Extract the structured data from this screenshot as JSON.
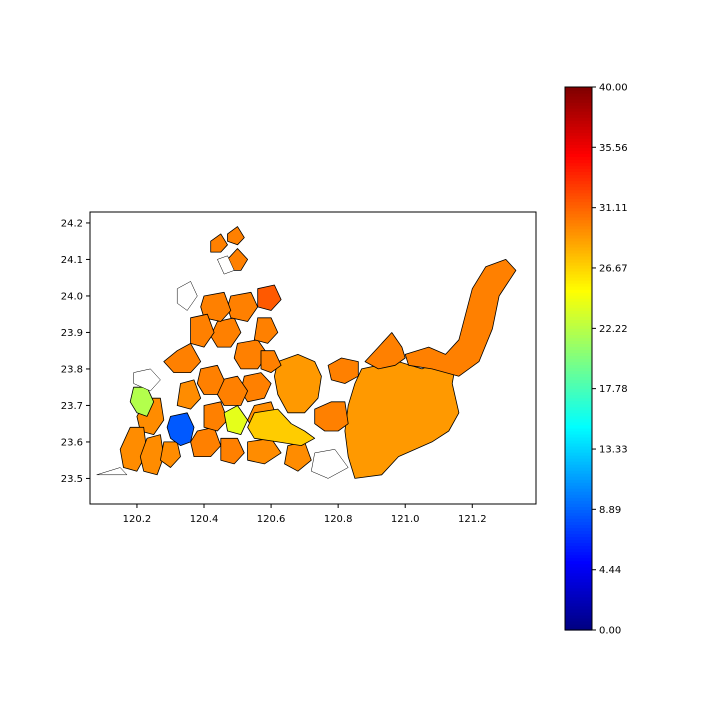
{
  "chart_data": {
    "type": "choropleth-map",
    "title": "",
    "xlabel": "",
    "ylabel": "",
    "xlim": [
      120.06,
      121.39
    ],
    "ylim": [
      23.43,
      24.23
    ],
    "x_ticks": [
      120.2,
      120.4,
      120.6,
      120.8,
      121.0,
      121.2
    ],
    "x_tick_labels": [
      "120.2",
      "120.4",
      "120.6",
      "120.8",
      "121.0",
      "121.2"
    ],
    "y_ticks": [
      23.5,
      23.6,
      23.7,
      23.8,
      23.9,
      24.0,
      24.1,
      24.2
    ],
    "y_tick_labels": [
      "23.5",
      "23.6",
      "23.7",
      "23.8",
      "23.9",
      "24.0",
      "24.1",
      "24.2"
    ],
    "grid": false,
    "colorbar": {
      "colormap": "jet",
      "vmin": 0.0,
      "vmax": 40.0,
      "ticks": [
        0.0,
        4.44,
        8.89,
        13.33,
        17.78,
        22.22,
        26.67,
        31.11,
        35.56,
        40.0
      ],
      "tick_labels": [
        "0.00",
        "4.44",
        "8.89",
        "13.33",
        "17.78",
        "22.22",
        "26.67",
        "31.11",
        "35.56",
        "40.00"
      ],
      "placement": "right"
    },
    "regions": [
      {
        "value": 29.0,
        "ring": [
          [
            120.98,
            23.82
          ],
          [
            121.05,
            23.8
          ],
          [
            121.12,
            23.83
          ],
          [
            121.16,
            23.86
          ],
          [
            121.14,
            23.76
          ],
          [
            121.16,
            23.68
          ],
          [
            121.13,
            23.63
          ],
          [
            121.08,
            23.6
          ],
          [
            121.03,
            23.58
          ],
          [
            120.98,
            23.56
          ],
          [
            120.93,
            23.51
          ],
          [
            120.85,
            23.5
          ],
          [
            120.83,
            23.56
          ],
          [
            120.82,
            23.63
          ],
          [
            120.83,
            23.7
          ],
          [
            120.85,
            23.76
          ],
          [
            120.87,
            23.8
          ],
          [
            120.92,
            23.81
          ]
        ]
      },
      {
        "value": 30.0,
        "ring": [
          [
            121.0,
            23.84
          ],
          [
            121.07,
            23.86
          ],
          [
            121.12,
            23.84
          ],
          [
            121.16,
            23.88
          ],
          [
            121.18,
            23.95
          ],
          [
            121.2,
            24.02
          ],
          [
            121.24,
            24.08
          ],
          [
            121.3,
            24.1
          ],
          [
            121.33,
            24.07
          ],
          [
            121.28,
            24.0
          ],
          [
            121.26,
            23.91
          ],
          [
            121.22,
            23.82
          ],
          [
            121.16,
            23.78
          ],
          [
            121.08,
            23.8
          ],
          [
            121.01,
            23.81
          ]
        ]
      },
      {
        "value": 30.0,
        "ring": [
          [
            120.88,
            23.82
          ],
          [
            120.92,
            23.86
          ],
          [
            120.96,
            23.9
          ],
          [
            120.99,
            23.86
          ],
          [
            121.0,
            23.83
          ],
          [
            120.97,
            23.81
          ],
          [
            120.92,
            23.8
          ]
        ]
      },
      {
        "value": 30.0,
        "ring": [
          [
            120.73,
            23.69
          ],
          [
            120.78,
            23.71
          ],
          [
            120.82,
            23.71
          ],
          [
            120.83,
            23.65
          ],
          [
            120.8,
            23.63
          ],
          [
            120.76,
            23.63
          ],
          [
            120.73,
            23.65
          ]
        ]
      },
      {
        "value": 30.0,
        "ring": [
          [
            120.77,
            23.81
          ],
          [
            120.81,
            23.83
          ],
          [
            120.86,
            23.82
          ],
          [
            120.86,
            23.78
          ],
          [
            120.82,
            23.76
          ],
          [
            120.78,
            23.77
          ]
        ]
      },
      {
        "value": 29.0,
        "ring": [
          [
            120.62,
            23.82
          ],
          [
            120.68,
            23.84
          ],
          [
            120.73,
            23.82
          ],
          [
            120.75,
            23.78
          ],
          [
            120.74,
            23.72
          ],
          [
            120.7,
            23.68
          ],
          [
            120.65,
            23.68
          ],
          [
            120.62,
            23.73
          ],
          [
            120.61,
            23.78
          ]
        ]
      },
      {
        "value": 29.5,
        "ring": [
          [
            120.55,
            23.7
          ],
          [
            120.6,
            23.71
          ],
          [
            120.62,
            23.66
          ],
          [
            120.6,
            23.63
          ],
          [
            120.55,
            23.63
          ],
          [
            120.53,
            23.66
          ]
        ]
      },
      {
        "value": 30.0,
        "ring": [
          [
            120.52,
            23.78
          ],
          [
            120.57,
            23.79
          ],
          [
            120.6,
            23.76
          ],
          [
            120.58,
            23.72
          ],
          [
            120.53,
            23.71
          ],
          [
            120.51,
            23.74
          ]
        ]
      },
      {
        "value": 30.0,
        "ring": [
          [
            120.45,
            23.77
          ],
          [
            120.5,
            23.78
          ],
          [
            120.53,
            23.74
          ],
          [
            120.51,
            23.7
          ],
          [
            120.46,
            23.7
          ],
          [
            120.44,
            23.73
          ]
        ]
      },
      {
        "value": 30.0,
        "ring": [
          [
            120.39,
            23.8
          ],
          [
            120.44,
            23.81
          ],
          [
            120.46,
            23.77
          ],
          [
            120.44,
            23.73
          ],
          [
            120.4,
            23.73
          ],
          [
            120.38,
            23.76
          ]
        ]
      },
      {
        "value": 30.0,
        "ring": [
          [
            120.5,
            23.87
          ],
          [
            120.56,
            23.88
          ],
          [
            120.59,
            23.84
          ],
          [
            120.56,
            23.8
          ],
          [
            120.51,
            23.8
          ],
          [
            120.49,
            23.83
          ]
        ]
      },
      {
        "value": 30.0,
        "ring": [
          [
            120.44,
            23.93
          ],
          [
            120.49,
            23.94
          ],
          [
            120.51,
            23.9
          ],
          [
            120.48,
            23.86
          ],
          [
            120.44,
            23.86
          ],
          [
            120.42,
            23.89
          ]
        ]
      },
      {
        "value": 30.0,
        "ring": [
          [
            120.48,
            24.0
          ],
          [
            120.54,
            24.01
          ],
          [
            120.56,
            23.97
          ],
          [
            120.53,
            23.93
          ],
          [
            120.48,
            23.94
          ],
          [
            120.47,
            23.97
          ]
        ]
      },
      {
        "value": 31.5,
        "ring": [
          [
            120.56,
            24.02
          ],
          [
            120.61,
            24.03
          ],
          [
            120.63,
            23.99
          ],
          [
            120.6,
            23.96
          ],
          [
            120.56,
            23.97
          ]
        ]
      },
      {
        "value": 30.0,
        "ring": [
          [
            120.56,
            23.94
          ],
          [
            120.6,
            23.94
          ],
          [
            120.62,
            23.9
          ],
          [
            120.59,
            23.87
          ],
          [
            120.55,
            23.88
          ]
        ]
      },
      {
        "value": 30.0,
        "ring": [
          [
            120.57,
            23.85
          ],
          [
            120.61,
            23.85
          ],
          [
            120.63,
            23.81
          ],
          [
            120.6,
            23.79
          ],
          [
            120.57,
            23.8
          ]
        ]
      },
      {
        "value": 30.0,
        "ring": [
          [
            120.4,
            24.0
          ],
          [
            120.46,
            24.01
          ],
          [
            120.48,
            23.96
          ],
          [
            120.45,
            23.93
          ],
          [
            120.4,
            23.94
          ],
          [
            120.39,
            23.97
          ]
        ]
      },
      {
        "value": 30.0,
        "ring": [
          [
            120.36,
            23.94
          ],
          [
            120.41,
            23.95
          ],
          [
            120.43,
            23.9
          ],
          [
            120.4,
            23.86
          ],
          [
            120.36,
            23.87
          ]
        ]
      },
      {
        "value": 30.0,
        "ring": [
          [
            120.47,
            24.1
          ],
          [
            120.5,
            24.13
          ],
          [
            120.53,
            24.1
          ],
          [
            120.51,
            24.07
          ],
          [
            120.48,
            24.07
          ]
        ]
      },
      {
        "value": 30.0,
        "ring": [
          [
            120.42,
            24.15
          ],
          [
            120.45,
            24.17
          ],
          [
            120.47,
            24.14
          ],
          [
            120.45,
            24.12
          ],
          [
            120.42,
            24.12
          ]
        ]
      },
      {
        "value": 30.0,
        "ring": [
          [
            120.47,
            24.17
          ],
          [
            120.5,
            24.19
          ],
          [
            120.52,
            24.16
          ],
          [
            120.5,
            24.14
          ],
          [
            120.47,
            24.15
          ]
        ]
      },
      {
        "value": 30.0,
        "ring": [
          [
            120.36,
            23.87
          ],
          [
            120.39,
            23.82
          ],
          [
            120.36,
            23.79
          ],
          [
            120.31,
            23.79
          ],
          [
            120.28,
            23.82
          ],
          [
            120.32,
            23.85
          ]
        ]
      },
      {
        "value": 29.5,
        "ring": [
          [
            120.33,
            23.76
          ],
          [
            120.37,
            23.77
          ],
          [
            120.39,
            23.72
          ],
          [
            120.36,
            23.69
          ],
          [
            120.32,
            23.7
          ]
        ]
      },
      {
        "value": 29.5,
        "ring": [
          [
            120.23,
            23.72
          ],
          [
            120.27,
            23.72
          ],
          [
            120.28,
            23.66
          ],
          [
            120.25,
            23.62
          ],
          [
            120.21,
            23.63
          ],
          [
            120.2,
            23.67
          ]
        ]
      },
      {
        "value": 29.5,
        "ring": [
          [
            120.18,
            23.64
          ],
          [
            120.22,
            23.64
          ],
          [
            120.23,
            23.57
          ],
          [
            120.2,
            23.52
          ],
          [
            120.16,
            23.53
          ],
          [
            120.15,
            23.58
          ]
        ]
      },
      {
        "value": 29.5,
        "ring": [
          [
            120.23,
            23.61
          ],
          [
            120.27,
            23.62
          ],
          [
            120.28,
            23.56
          ],
          [
            120.26,
            23.51
          ],
          [
            120.22,
            23.52
          ],
          [
            120.21,
            23.56
          ]
        ]
      },
      {
        "value": 29.5,
        "ring": [
          [
            120.28,
            23.6
          ],
          [
            120.32,
            23.6
          ],
          [
            120.33,
            23.56
          ],
          [
            120.3,
            23.53
          ],
          [
            120.27,
            23.55
          ]
        ]
      },
      {
        "value": 30.0,
        "ring": [
          [
            120.38,
            23.63
          ],
          [
            120.43,
            23.64
          ],
          [
            120.45,
            23.59
          ],
          [
            120.42,
            23.56
          ],
          [
            120.37,
            23.56
          ],
          [
            120.36,
            23.6
          ]
        ]
      },
      {
        "value": 30.0,
        "ring": [
          [
            120.45,
            23.61
          ],
          [
            120.5,
            23.61
          ],
          [
            120.52,
            23.57
          ],
          [
            120.49,
            23.54
          ],
          [
            120.45,
            23.55
          ]
        ]
      },
      {
        "value": 29.5,
        "ring": [
          [
            120.53,
            23.6
          ],
          [
            120.6,
            23.61
          ],
          [
            120.63,
            23.57
          ],
          [
            120.58,
            23.54
          ],
          [
            120.53,
            23.55
          ]
        ]
      },
      {
        "value": 29.5,
        "ring": [
          [
            120.65,
            23.59
          ],
          [
            120.7,
            23.6
          ],
          [
            120.72,
            23.55
          ],
          [
            120.68,
            23.52
          ],
          [
            120.64,
            23.54
          ]
        ]
      },
      {
        "value": 30.0,
        "ring": [
          [
            120.4,
            23.7
          ],
          [
            120.45,
            23.71
          ],
          [
            120.47,
            23.66
          ],
          [
            120.44,
            23.63
          ],
          [
            120.4,
            23.64
          ]
        ]
      },
      {
        "value": 27.0,
        "ring": [
          [
            120.55,
            23.68
          ],
          [
            120.62,
            23.69
          ],
          [
            120.66,
            23.65
          ],
          [
            120.7,
            23.63
          ],
          [
            120.73,
            23.61
          ],
          [
            120.69,
            23.59
          ],
          [
            120.62,
            23.6
          ],
          [
            120.55,
            23.61
          ],
          [
            120.53,
            23.64
          ]
        ]
      },
      {
        "value": 24.0,
        "ring": [
          [
            120.46,
            23.68
          ],
          [
            120.5,
            23.7
          ],
          [
            120.53,
            23.66
          ],
          [
            120.51,
            23.62
          ],
          [
            120.47,
            23.63
          ]
        ]
      },
      {
        "value": 22.0,
        "ring": [
          [
            120.19,
            23.75
          ],
          [
            120.23,
            23.75
          ],
          [
            120.25,
            23.71
          ],
          [
            120.23,
            23.67
          ],
          [
            120.2,
            23.68
          ],
          [
            120.18,
            23.71
          ]
        ]
      },
      {
        "value": 8.5,
        "ring": [
          [
            120.3,
            23.67
          ],
          [
            120.35,
            23.68
          ],
          [
            120.37,
            23.64
          ],
          [
            120.36,
            23.6
          ],
          [
            120.33,
            23.59
          ],
          [
            120.3,
            23.61
          ],
          [
            120.29,
            23.64
          ]
        ]
      },
      {
        "value": null,
        "ring": [
          [
            120.08,
            23.51
          ],
          [
            120.17,
            23.51
          ],
          [
            120.15,
            23.53
          ]
        ]
      },
      {
        "value": null,
        "ring": [
          [
            120.19,
            23.79
          ],
          [
            120.24,
            23.8
          ],
          [
            120.27,
            23.77
          ],
          [
            120.24,
            23.74
          ],
          [
            120.19,
            23.76
          ]
        ]
      },
      {
        "value": null,
        "ring": [
          [
            120.32,
            24.02
          ],
          [
            120.36,
            24.04
          ],
          [
            120.38,
            24.0
          ],
          [
            120.35,
            23.96
          ],
          [
            120.32,
            23.98
          ]
        ]
      },
      {
        "value": null,
        "ring": [
          [
            120.44,
            24.1
          ],
          [
            120.47,
            24.11
          ],
          [
            120.49,
            24.07
          ],
          [
            120.46,
            24.06
          ]
        ]
      },
      {
        "value": null,
        "ring": [
          [
            120.73,
            23.57
          ],
          [
            120.79,
            23.58
          ],
          [
            120.83,
            23.53
          ],
          [
            120.77,
            23.5
          ],
          [
            120.72,
            23.52
          ]
        ]
      }
    ]
  }
}
